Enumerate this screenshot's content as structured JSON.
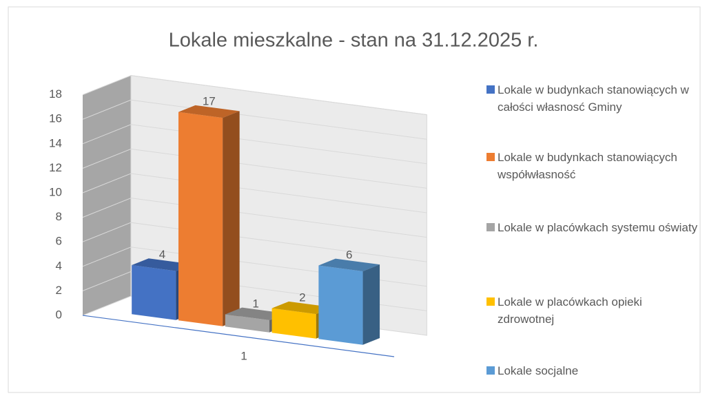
{
  "chart_data": {
    "type": "bar3d",
    "title": "Lokale mieszkalne - stan na 31.12.2025 r.",
    "categories": [
      "1"
    ],
    "series": [
      {
        "name": "Lokale w budynkach stanowiących w całości własnosć Gminy",
        "color": "#4472c4",
        "values": [
          4
        ]
      },
      {
        "name": "Lokale w budynkach stanowiących współwłasność",
        "color": "#ed7d31",
        "values": [
          17
        ]
      },
      {
        "name": "Lokale w placówkach systemu oświaty",
        "color": "#a5a5a5",
        "values": [
          1
        ]
      },
      {
        "name": "Lokale w placówkach opieki zdrowotnej",
        "color": "#ffc000",
        "values": [
          2
        ]
      },
      {
        "name": "Lokale socjalne",
        "color": "#5b9bd5",
        "values": [
          6
        ]
      }
    ],
    "ylim": [
      0,
      18
    ],
    "yticks": [
      0,
      2,
      4,
      6,
      8,
      10,
      12,
      14,
      16,
      18
    ],
    "grid": true,
    "legend": "right"
  }
}
